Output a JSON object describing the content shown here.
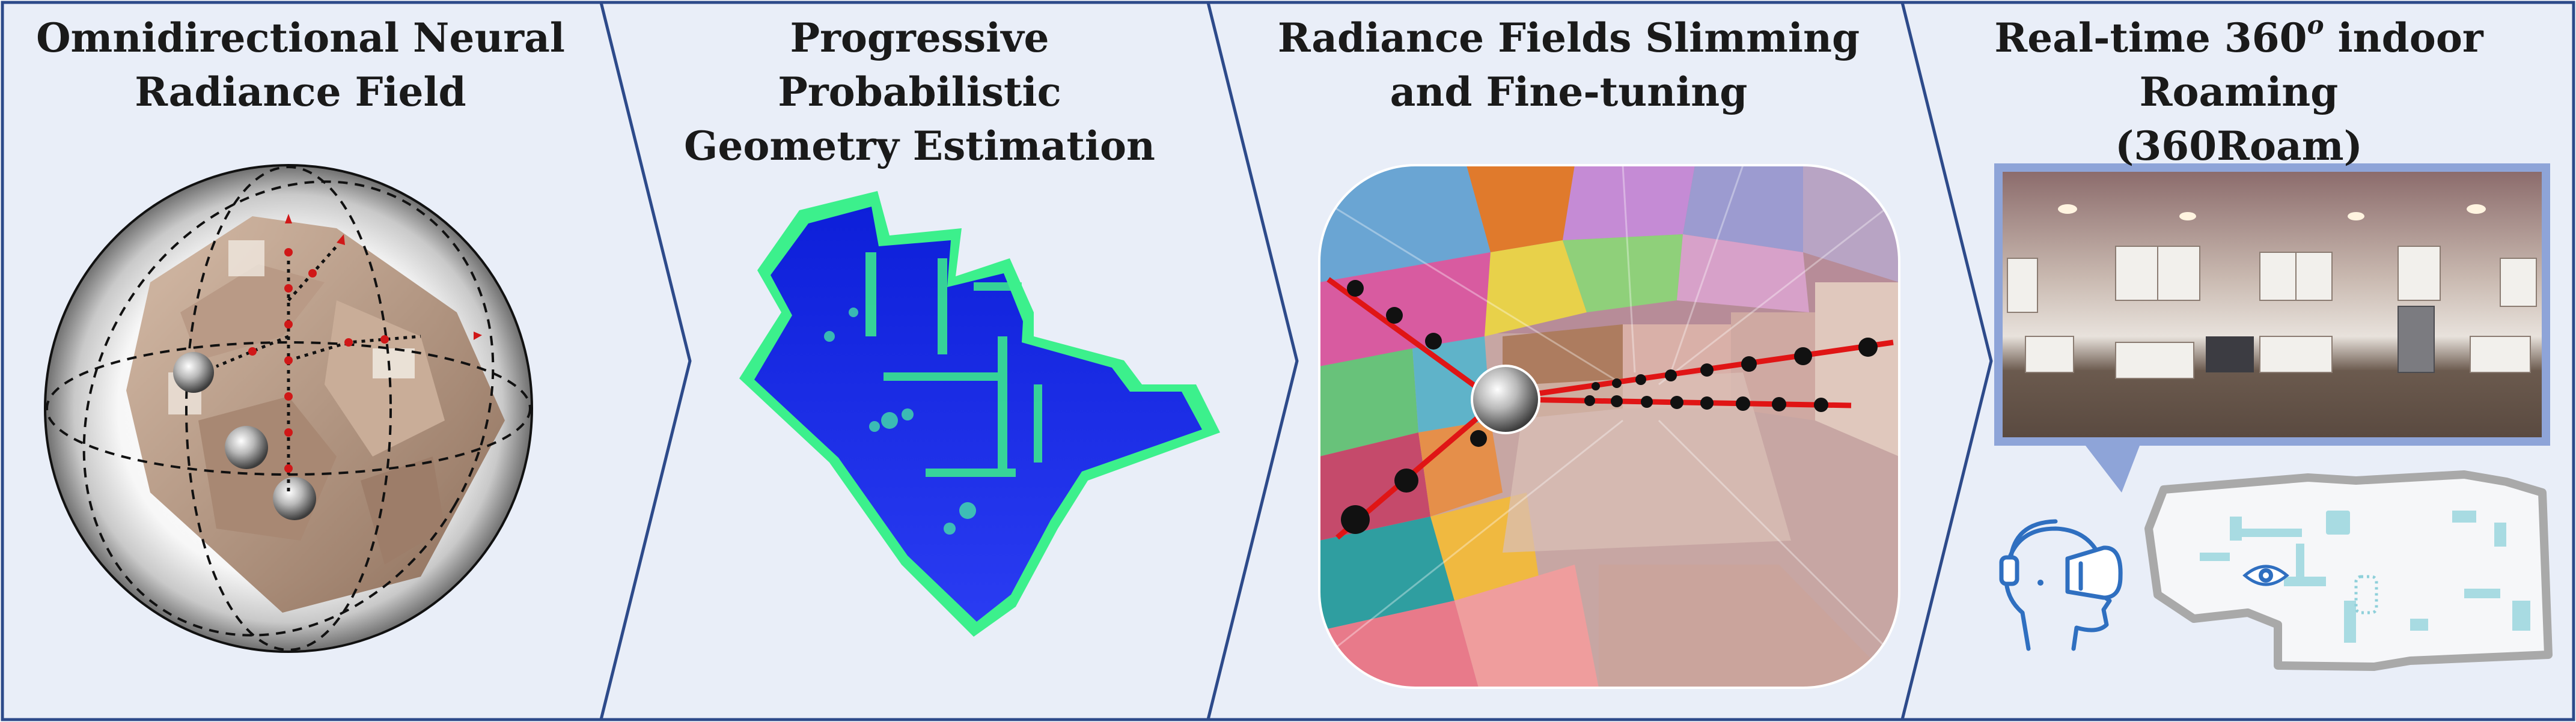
{
  "stages": [
    {
      "title_line1": "Omnidirectional Neural",
      "title_line2": "Radiance Field"
    },
    {
      "title_line1": "Progressive Probabilistic",
      "title_line2": "Geometry Estimation"
    },
    {
      "title_line1": "Radiance Fields Slimming",
      "title_line2": "and Fine-tuning"
    },
    {
      "title_line1_pre": "Real-time 360",
      "title_line1_sup": "o",
      "title_line1_post": " indoor Roaming",
      "title_line2": "(360Roam)"
    }
  ],
  "colors": {
    "panel_fill": "#e9eef8",
    "panel_border": "#2d4a8a",
    "point_cloud_blue": "#1228e8",
    "point_cloud_green": "#3cf08c",
    "ray_red": "#e01515",
    "node_black": "#111111",
    "frame_blue": "#8ea4d8",
    "icon_blue": "#2f6fc0"
  },
  "icons": [
    "vr-headset-icon",
    "eye-icon"
  ]
}
